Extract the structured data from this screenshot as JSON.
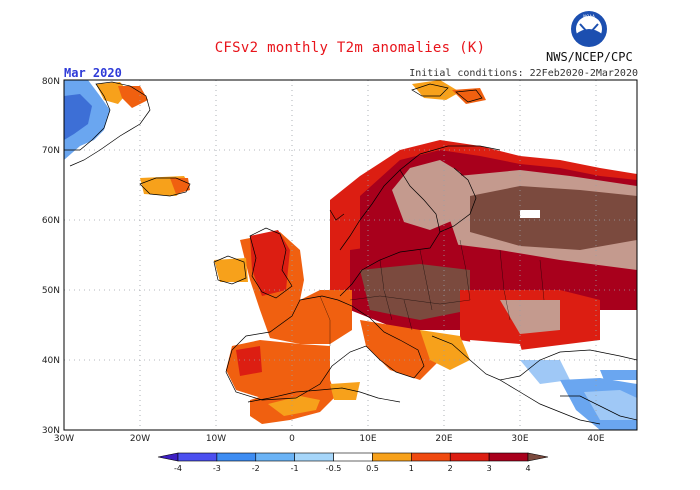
{
  "header": {
    "title": "CFSv2 monthly T2m anomalies (K)",
    "month": "Mar 2020",
    "initial_conditions": "Initial conditions: 22Feb2020-2Mar2020",
    "agency": "NWS/NCEP/CPC",
    "logo_text": "NOAA"
  },
  "map": {
    "lon_range": [
      -30,
      45
    ],
    "lat_range": [
      30,
      80
    ],
    "lon_ticks": [
      "30W",
      "20W",
      "10W",
      "0",
      "10E",
      "20E",
      "30E",
      "40E"
    ],
    "lat_ticks": [
      "30N",
      "40N",
      "50N",
      "60N",
      "70N",
      "80N"
    ],
    "colors": {
      "blue_dark": "#3d6fd6",
      "blue": "#6aa6f0",
      "blue_light": "#9fc8f6",
      "orange": "#f7a11b",
      "red_orange": "#f06010",
      "red": "#dc1e12",
      "dark_red": "#a8001c",
      "tan": "#c49a8e",
      "brown": "#7b4a3e",
      "coast": "#000000",
      "grid": "#9aa0a6"
    }
  },
  "colorbar": {
    "labels": [
      "-4",
      "-3",
      "-2",
      "-1",
      "-0.5",
      "0.5",
      "1",
      "2",
      "3",
      "4"
    ],
    "colors": [
      "#3d1ec2",
      "#4b4ff0",
      "#3d8cf2",
      "#6ab3f6",
      "#a6d6fa",
      "#ffffff",
      "#f7a11b",
      "#f04a10",
      "#dc1e12",
      "#a8001c",
      "#7b4a3e"
    ]
  }
}
